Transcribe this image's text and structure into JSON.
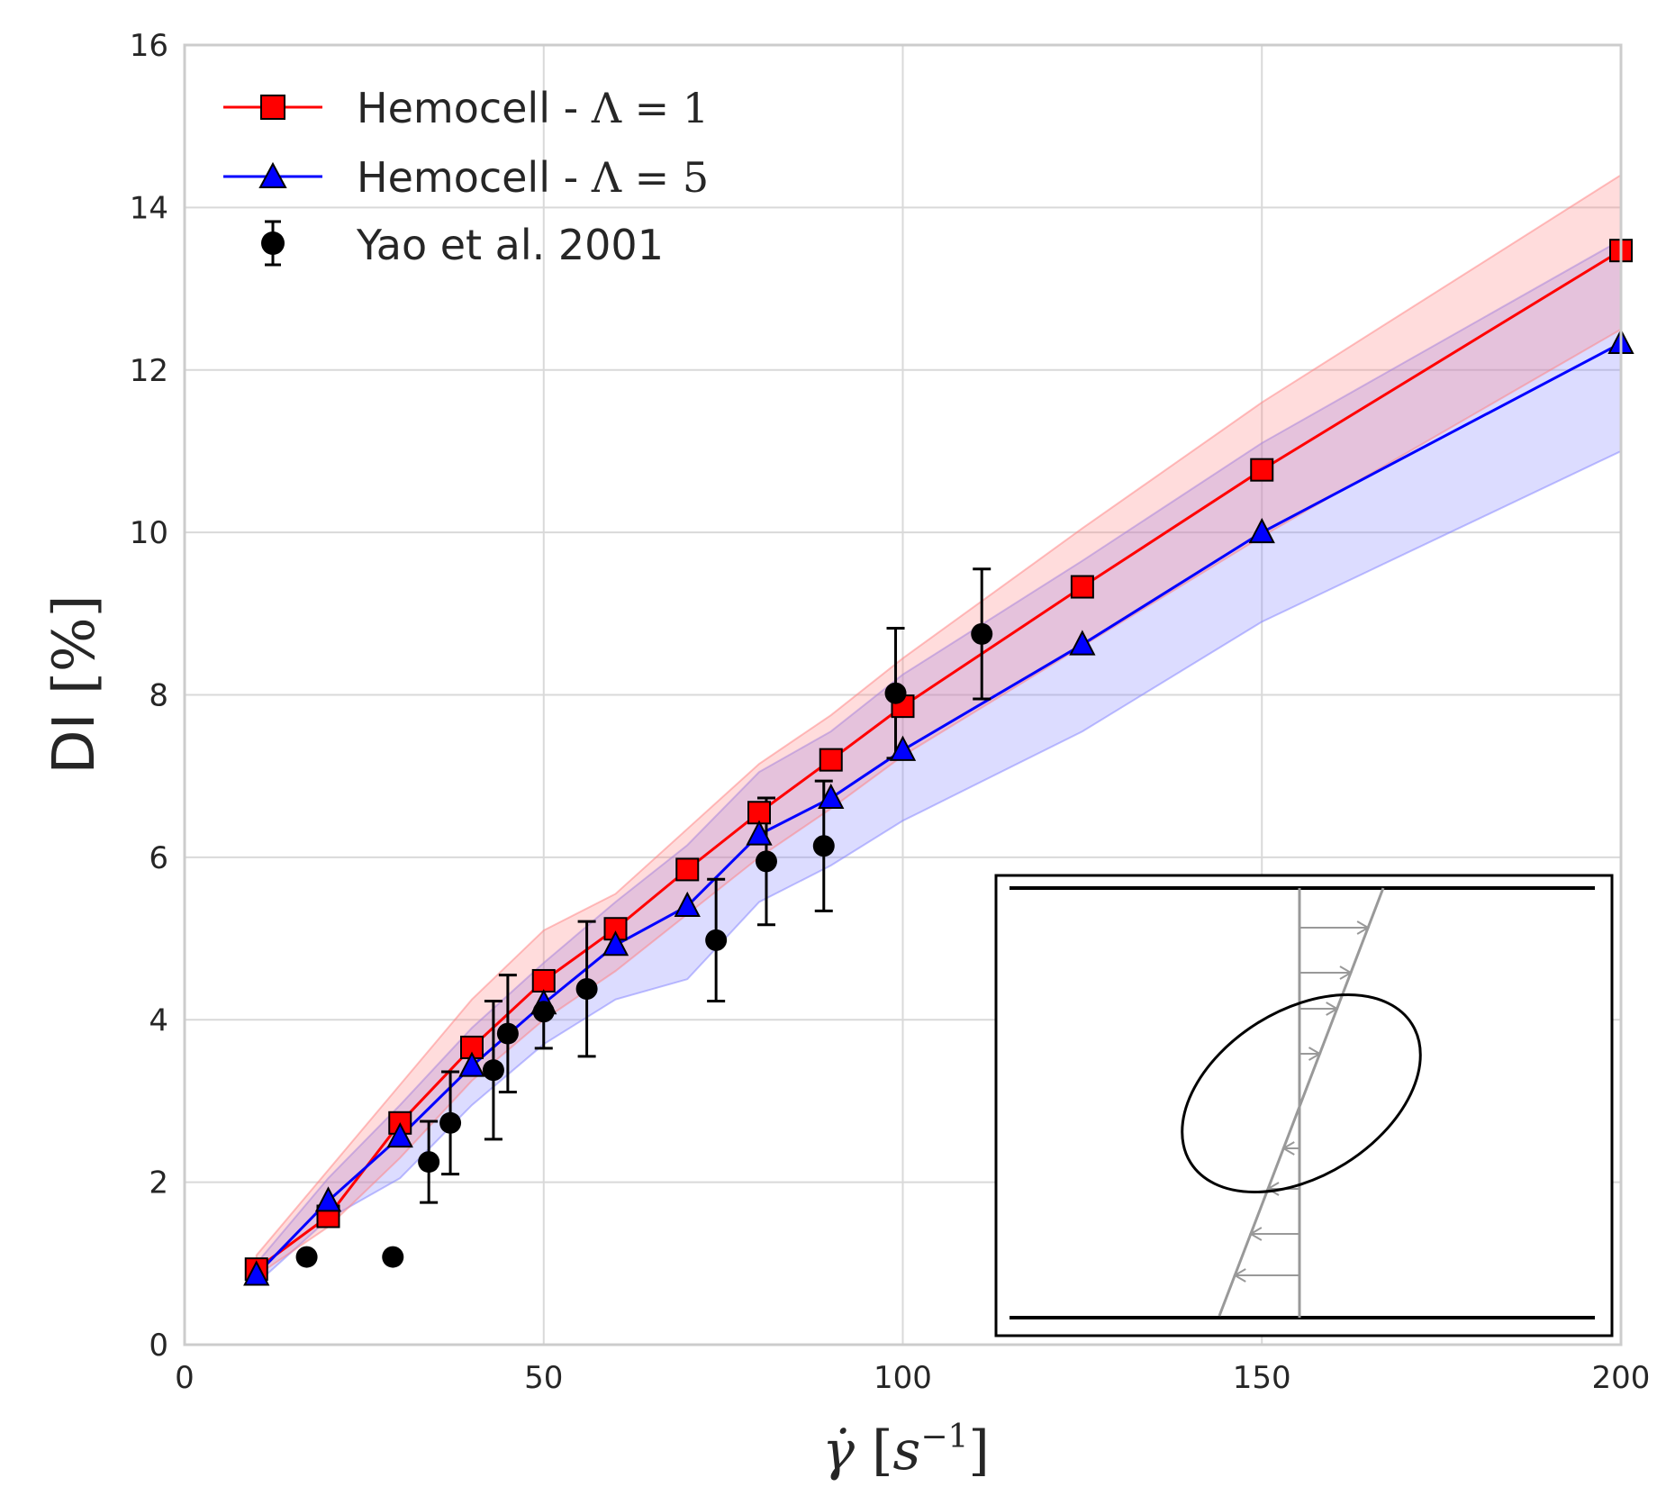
{
  "chart_data": {
    "type": "line",
    "title": "",
    "xlabel": "γ̇ [s⁻¹]",
    "ylabel": "DI [%]",
    "xlim": [
      0,
      200
    ],
    "ylim": [
      0,
      16
    ],
    "xticks": [
      0,
      50,
      100,
      150,
      200
    ],
    "yticks": [
      0,
      2,
      4,
      6,
      8,
      10,
      12,
      14,
      16
    ],
    "xtick_labels": [
      "0",
      "50",
      "100",
      "150",
      "200"
    ],
    "ytick_labels": [
      "0",
      "2",
      "4",
      "6",
      "8",
      "10",
      "12",
      "14",
      "16"
    ],
    "grid": true,
    "legend_position": "top-left",
    "series": [
      {
        "name": "Hemocell - Λ = 1",
        "color": "#ff0000",
        "band_color": "#ff8080",
        "marker": "square",
        "x": [
          10,
          20,
          30,
          40,
          50,
          60,
          70,
          80,
          90,
          100,
          125,
          150,
          200
        ],
        "y": [
          0.93,
          1.58,
          2.73,
          3.66,
          4.48,
          5.12,
          5.85,
          6.55,
          7.2,
          7.86,
          9.33,
          10.77,
          13.47
        ],
        "lower": [
          0.85,
          1.45,
          2.3,
          3.25,
          4.0,
          4.6,
          5.3,
          6.0,
          6.6,
          7.25,
          8.6,
          9.95,
          12.5
        ],
        "upper": [
          1.1,
          2.15,
          3.2,
          4.25,
          5.1,
          5.55,
          6.35,
          7.15,
          7.75,
          8.45,
          10.05,
          11.6,
          14.4
        ]
      },
      {
        "name": "Hemocell - Λ = 5",
        "color": "#0000ff",
        "band_color": "#8080ff",
        "marker": "triangle",
        "x": [
          10,
          20,
          30,
          40,
          50,
          60,
          70,
          80,
          90,
          100,
          125,
          150,
          200
        ],
        "y": [
          0.86,
          1.77,
          2.56,
          3.43,
          4.2,
          4.92,
          5.4,
          6.28,
          6.73,
          7.32,
          8.62,
          10.0,
          12.33
        ],
        "lower": [
          0.75,
          1.55,
          2.05,
          2.95,
          3.7,
          4.25,
          4.5,
          5.45,
          5.9,
          6.45,
          7.55,
          8.9,
          11.0
        ],
        "upper": [
          1.0,
          2.05,
          2.95,
          3.9,
          4.7,
          5.45,
          6.15,
          7.05,
          7.55,
          8.25,
          9.65,
          11.1,
          13.6
        ]
      },
      {
        "name": "Yao et al. 2001",
        "color": "#000000",
        "marker": "circle",
        "x": [
          17,
          29,
          34,
          37,
          43,
          45,
          50,
          56,
          74,
          81,
          89,
          99,
          111
        ],
        "y": [
          1.08,
          1.08,
          2.25,
          2.73,
          3.38,
          3.83,
          4.1,
          4.38,
          4.98,
          5.95,
          6.14,
          8.02,
          8.75
        ],
        "err": [
          null,
          null,
          0.5,
          0.63,
          0.85,
          0.72,
          0.45,
          0.83,
          0.75,
          0.78,
          0.8,
          0.8,
          0.8
        ]
      }
    ]
  },
  "legend": {
    "item1_prefix": "Hemocell - ",
    "item1_math": "Λ = 1",
    "item2_prefix": "Hemocell - ",
    "item2_math": "Λ = 5",
    "item3": "Yao et al. 2001"
  },
  "axes": {
    "ylabel_main": "DI ",
    "ylabel_unit": "[%]",
    "xlabel_symbol": "γ̇",
    "xlabel_unit_open": " [",
    "xlabel_unit_var": "s",
    "xlabel_unit_exp": "−1",
    "xlabel_unit_close": "]"
  },
  "inset": {
    "description_icon": "shear-flow-ellipse-diagram"
  }
}
